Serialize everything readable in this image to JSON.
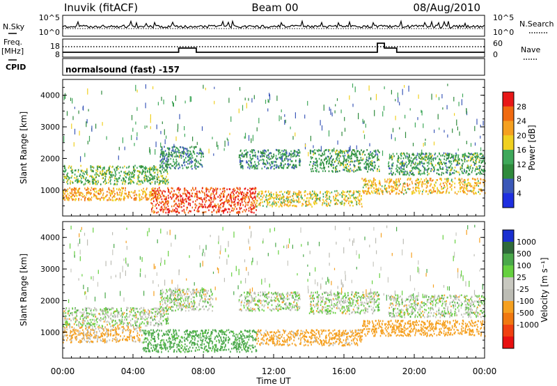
{
  "header": {
    "station": "Inuvik (fitACF)",
    "beam": "Beam 00",
    "date": "08/Aug/2010"
  },
  "status_panel": {
    "nsky_label": "N.Sky",
    "freq_label_1": "Freq.",
    "freq_label_2": "[MHz]",
    "cpid_label": "CPID",
    "nsearch_label": "N.Search",
    "nave_label": "Nave",
    "nsky_ticks": [
      "10^5",
      "10^0"
    ],
    "nsearch_ticks": [
      "10^5",
      "10^0"
    ],
    "freq_ticks": [
      "18",
      "8"
    ],
    "nave_ticks": [
      "60",
      "0"
    ],
    "cpid_text": "normalsound (fast) -157"
  },
  "colors": {
    "power_scale": [
      "#1e2fe0",
      "#3b58b8",
      "#2f8a3c",
      "#3fa85a",
      "#f0d020",
      "#f5a020",
      "#f06a10",
      "#e81818"
    ],
    "velocity_scale": [
      "#1a2fd0",
      "#2f6a3a",
      "#4aa84a",
      "#66d040",
      "#c8c8c0",
      "#bcbcb4",
      "#f5a020",
      "#f07810",
      "#f04010",
      "#e81010"
    ]
  },
  "chart_data": [
    {
      "type": "line",
      "name": "status-traces",
      "x_label": "",
      "x_range_hours": [
        0,
        24
      ],
      "freq_segments": [
        {
          "start_hour": 0.0,
          "end_hour": 6.6,
          "level": "low"
        },
        {
          "start_hour": 6.6,
          "end_hour": 7.6,
          "level": "mid"
        },
        {
          "start_hour": 7.6,
          "end_hour": 17.9,
          "level": "low"
        },
        {
          "start_hour": 17.9,
          "end_hour": 18.3,
          "level": "high"
        },
        {
          "start_hour": 18.3,
          "end_hour": 19.0,
          "level": "mid"
        },
        {
          "start_hour": 19.0,
          "end_hour": 24.0,
          "level": "low"
        }
      ]
    },
    {
      "type": "heatmap",
      "name": "power",
      "ylabel": "Slant Range [km]",
      "ylim": [
        180,
        4500
      ],
      "yticks": [
        "4000",
        "3000",
        "2000",
        "1000"
      ],
      "colorbar_label": "Power [dB]",
      "colorbar_ticks": [
        "28",
        "24",
        "20",
        "16",
        "12",
        "8",
        "4"
      ],
      "colorbar_range": [
        0,
        32
      ],
      "bands": [
        {
          "start_hour": 0.0,
          "end_hour": 6.0,
          "range_low": 1200,
          "range_high": 1800,
          "value": 14
        },
        {
          "start_hour": 0.0,
          "end_hour": 5.5,
          "range_low": 700,
          "range_high": 1100,
          "value": 22
        },
        {
          "start_hour": 5.5,
          "end_hour": 8.0,
          "range_low": 1700,
          "range_high": 2400,
          "value": 10
        },
        {
          "start_hour": 5.0,
          "end_hour": 11.0,
          "range_low": 300,
          "range_high": 1100,
          "value": 28
        },
        {
          "start_hour": 10.0,
          "end_hour": 13.5,
          "range_low": 1700,
          "range_high": 2300,
          "value": 10
        },
        {
          "start_hour": 11.0,
          "end_hour": 17.0,
          "range_low": 500,
          "range_high": 1000,
          "value": 18
        },
        {
          "start_hour": 14.0,
          "end_hour": 18.0,
          "range_low": 1600,
          "range_high": 2300,
          "value": 12
        },
        {
          "start_hour": 17.0,
          "end_hour": 24.0,
          "range_low": 900,
          "range_high": 1400,
          "value": 20
        },
        {
          "start_hour": 18.5,
          "end_hour": 24.0,
          "range_low": 1500,
          "range_high": 2200,
          "value": 12
        }
      ]
    },
    {
      "type": "heatmap",
      "name": "velocity",
      "xlabel": "Time UT",
      "xticks": [
        "00:00",
        "04:00",
        "08:00",
        "12:00",
        "16:00",
        "20:00",
        "00:00"
      ],
      "ylabel": "Slant Range [km]",
      "ylim": [
        180,
        4500
      ],
      "yticks": [
        "4000",
        "3000",
        "2000",
        "1000"
      ],
      "colorbar_label": "Velocity [m s⁻¹]",
      "colorbar_ticks": [
        "1000",
        "500",
        "100",
        "25",
        "-25",
        "-100",
        "-500",
        "-1000"
      ],
      "bands": [
        {
          "start_hour": 0.0,
          "end_hour": 6.0,
          "range_low": 1200,
          "range_high": 1800,
          "value": 0
        },
        {
          "start_hour": 0.0,
          "end_hour": 4.5,
          "range_low": 700,
          "range_high": 1200,
          "value": -150
        },
        {
          "start_hour": 4.5,
          "end_hour": 11.0,
          "range_low": 400,
          "range_high": 1100,
          "value": 200
        },
        {
          "start_hour": 5.5,
          "end_hour": 8.5,
          "range_low": 1700,
          "range_high": 2400,
          "value": 0
        },
        {
          "start_hour": 10.0,
          "end_hour": 13.5,
          "range_low": 1700,
          "range_high": 2300,
          "value": 0
        },
        {
          "start_hour": 11.0,
          "end_hour": 17.0,
          "range_low": 600,
          "range_high": 1100,
          "value": -200
        },
        {
          "start_hour": 14.0,
          "end_hour": 18.0,
          "range_low": 1600,
          "range_high": 2300,
          "value": 0
        },
        {
          "start_hour": 17.0,
          "end_hour": 24.0,
          "range_low": 900,
          "range_high": 1400,
          "value": -300
        },
        {
          "start_hour": 18.5,
          "end_hour": 24.0,
          "range_low": 1500,
          "range_high": 2200,
          "value": 0
        }
      ]
    }
  ]
}
